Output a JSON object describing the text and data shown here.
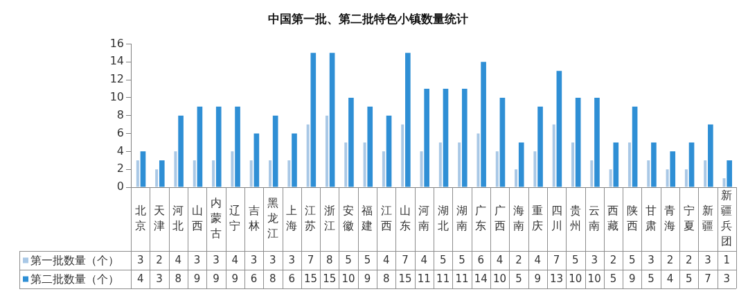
{
  "chart_data": {
    "type": "bar",
    "title": "中国第一批、第二批特色小镇数量统计",
    "categories": [
      "北京",
      "天津",
      "河北",
      "山西",
      "内蒙古",
      "辽宁",
      "吉林",
      "黑龙江",
      "上海",
      "江苏",
      "浙江",
      "安徽",
      "福建",
      "江西",
      "山东",
      "河南",
      "湖北",
      "湖南",
      "广东",
      "广西",
      "海南",
      "重庆",
      "四川",
      "贵州",
      "云南",
      "西藏",
      "陕西",
      "甘肃",
      "青海",
      "宁夏",
      "新疆",
      "新疆兵团"
    ],
    "series": [
      {
        "name": "第一批数量（个）",
        "color": "#a9c8e6",
        "values": [
          3,
          2,
          4,
          3,
          3,
          4,
          3,
          3,
          3,
          7,
          8,
          5,
          5,
          4,
          7,
          4,
          5,
          5,
          6,
          4,
          2,
          4,
          7,
          5,
          3,
          2,
          5,
          3,
          2,
          2,
          3,
          1
        ]
      },
      {
        "name": "第二批数量（个）",
        "color": "#2f8fd5",
        "values": [
          4,
          3,
          8,
          9,
          9,
          9,
          6,
          8,
          6,
          15,
          15,
          10,
          9,
          8,
          15,
          11,
          11,
          11,
          14,
          10,
          5,
          9,
          13,
          10,
          10,
          5,
          9,
          5,
          4,
          5,
          7,
          3
        ]
      }
    ],
    "ylim": [
      0,
      16
    ],
    "yticks": [
      0,
      2,
      4,
      6,
      8,
      10,
      12,
      14,
      16
    ],
    "grid": false,
    "legend": "bottom left",
    "data_labels": true
  }
}
